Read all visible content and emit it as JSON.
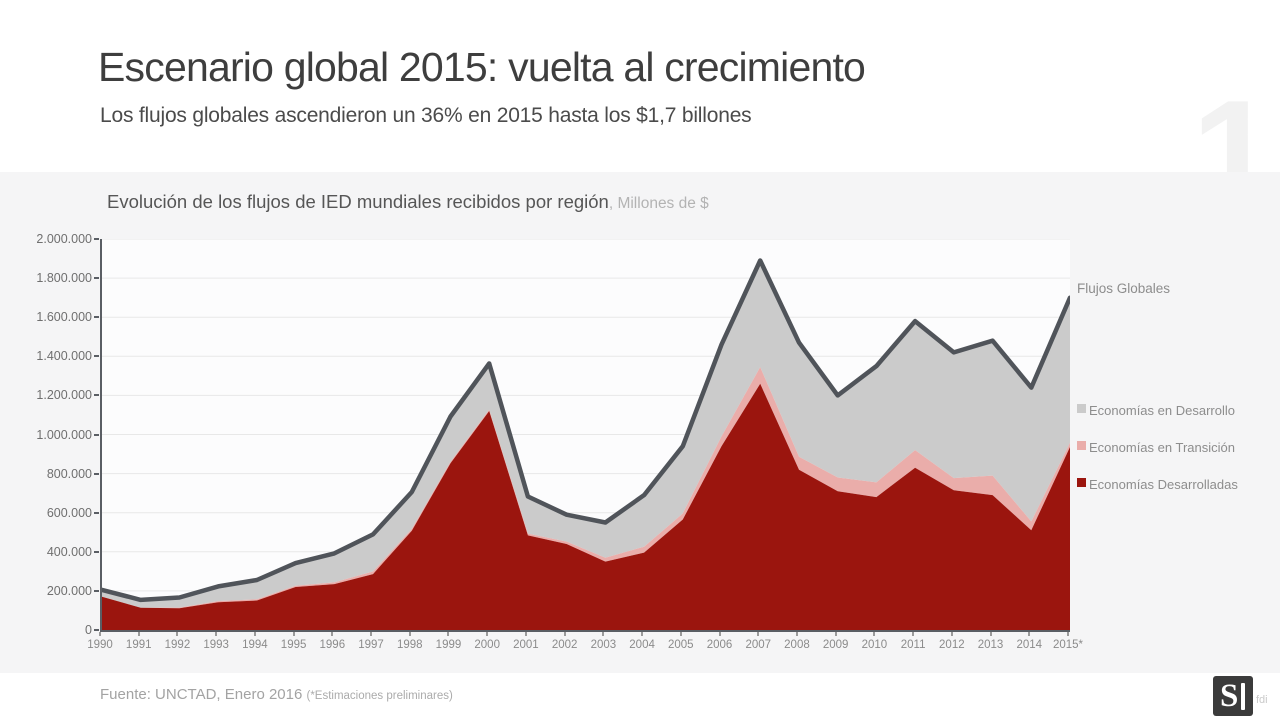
{
  "slide": {
    "title": "Escenario global 2015: vuelta al crecimiento",
    "subtitle": "Los flujos globales ascendieron un 36% en 2015 hasta los $1,7 billones",
    "page_number": "1"
  },
  "chart": {
    "title": "Evolución de los flujos de IED mundiales recibidos por región",
    "units_suffix": ", Millones de $",
    "line_label": "Flujos Globales"
  },
  "footer": {
    "source": "Fuente: UNCTAD, Enero 2016 ",
    "note": "(*Estimaciones preliminares)"
  },
  "logo": {
    "letter": "S",
    "suffix": "fdi"
  },
  "colors": {
    "panel_background": "#f5f5f6",
    "plot_background": "#fcfcfd",
    "gridline": "#e8e8e8",
    "axis": "#5a5e64",
    "developed_area": "#9b150e",
    "transition_area": "#eaadaa",
    "developing_area": "#cbcbcb",
    "global_line": "#50545a"
  },
  "chart_data": {
    "type": "area",
    "stacked": true,
    "title": "Evolución de los flujos de IED mundiales recibidos por región",
    "units": "Millones de $",
    "x_labels": [
      "1990",
      "1991",
      "1992",
      "1993",
      "1994",
      "1995",
      "1996",
      "1997",
      "1998",
      "1999",
      "2000",
      "2001",
      "2002",
      "2003",
      "2004",
      "2005",
      "2006",
      "2007",
      "2008",
      "2009",
      "2010",
      "2011",
      "2012",
      "2013",
      "2014",
      "2015*"
    ],
    "ylim": [
      0,
      2000000
    ],
    "ytick_step": 200000,
    "ytick_labels": [
      "0",
      "200.000",
      "400.000",
      "600.000",
      "800.000",
      "1.000.000",
      "1.200.000",
      "1.400.000",
      "1.600.000",
      "1.800.000",
      "2.000.000"
    ],
    "grid": true,
    "legend_position": "right",
    "series": [
      {
        "name": "Economías Desarrolladas",
        "role": "stack-bottom",
        "color": "#9b150e",
        "values": [
          170000,
          114000,
          111000,
          142000,
          151000,
          220000,
          235000,
          286000,
          508000,
          853000,
          1120000,
          484000,
          440000,
          350000,
          396000,
          565000,
          940000,
          1260000,
          820000,
          710000,
          680000,
          830000,
          715000,
          690000,
          510000,
          936000
        ]
      },
      {
        "name": "Economías en Transición",
        "role": "stack-middle",
        "color": "#eaadaa",
        "values": [
          200,
          200,
          3600,
          5600,
          5900,
          6700,
          8500,
          13000,
          9000,
          8000,
          7000,
          9000,
          12000,
          20000,
          30000,
          31000,
          50000,
          85000,
          66000,
          70000,
          75000,
          90000,
          62000,
          100000,
          45000,
          22000
        ]
      },
      {
        "name": "Economías en Desarrollo",
        "role": "stack-top",
        "color": "#cbcbcb",
        "values": [
          34800,
          39800,
          51400,
          75400,
          99100,
          115300,
          148500,
          190000,
          189000,
          231000,
          236000,
          190000,
          138000,
          180000,
          264000,
          344000,
          470000,
          545000,
          584000,
          420000,
          595000,
          660000,
          643000,
          690000,
          685000,
          742000
        ]
      },
      {
        "name": "Flujos Globales",
        "role": "total-line",
        "type": "line",
        "color": "#50545a",
        "values": [
          205000,
          154000,
          166000,
          223000,
          256000,
          342000,
          392000,
          489000,
          706000,
          1092000,
          1363000,
          683000,
          590000,
          550000,
          690000,
          940000,
          1460000,
          1890000,
          1470000,
          1200000,
          1350000,
          1580000,
          1420000,
          1480000,
          1240000,
          1700000
        ]
      }
    ]
  }
}
